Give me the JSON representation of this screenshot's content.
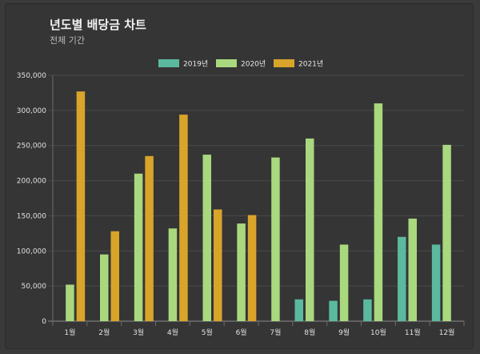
{
  "chart_data": {
    "type": "bar",
    "title": "년도별 배당금 차트",
    "subtitle": "전체 기간",
    "categories": [
      "1월",
      "2월",
      "3월",
      "4월",
      "5월",
      "6월",
      "7월",
      "8월",
      "9월",
      "10월",
      "11월",
      "12월"
    ],
    "series": [
      {
        "name": "2019년",
        "color": "#5bb99f",
        "values": [
          0,
          0,
          0,
          0,
          0,
          0,
          0,
          31000,
          29000,
          31000,
          120000,
          109000
        ]
      },
      {
        "name": "2020년",
        "color": "#a9d87e",
        "values": [
          52000,
          95000,
          210000,
          132000,
          237000,
          139000,
          233000,
          260000,
          109000,
          310000,
          146000,
          251000
        ]
      },
      {
        "name": "2021년",
        "color": "#d9a42a",
        "values": [
          327000,
          128000,
          235000,
          294000,
          159000,
          151000,
          0,
          0,
          0,
          0,
          0,
          0
        ]
      }
    ],
    "ylim": [
      0,
      350000
    ],
    "yticks": [
      "0",
      "50,000",
      "100,000",
      "150,000",
      "200,000",
      "250,000",
      "300,000",
      "350,000"
    ],
    "legend_position": "top-center",
    "grid": true
  }
}
